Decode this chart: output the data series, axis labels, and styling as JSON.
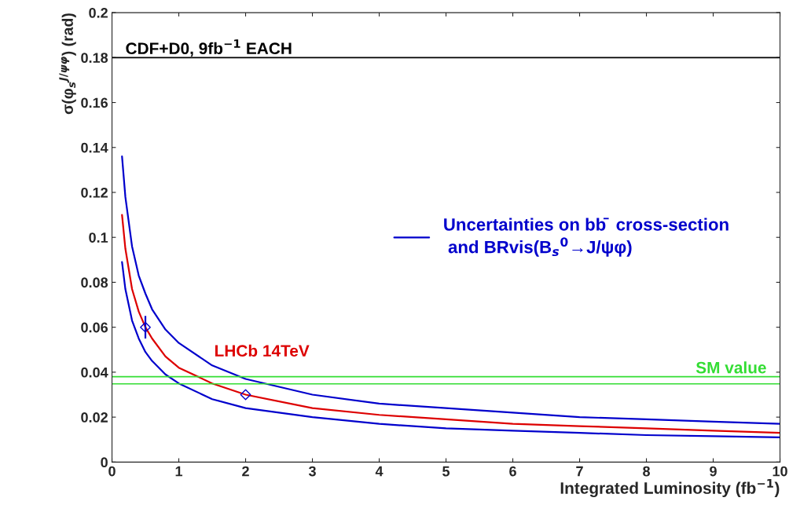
{
  "chart_data": {
    "type": "line",
    "xlabel": "Integrated Luminosity (fb$^{−1}$)",
    "ylabel": "σ(φ$_{s}$$^{J/ψφ}$) (rad)",
    "xlim": [
      0,
      10
    ],
    "ylim": [
      0,
      0.2
    ],
    "xticks": [
      0,
      1,
      2,
      3,
      4,
      5,
      6,
      7,
      8,
      9,
      10
    ],
    "yticks": [
      0,
      0.02,
      0.04,
      0.06,
      0.08,
      0.1,
      0.12,
      0.14,
      0.16,
      0.18,
      0.2
    ],
    "grid": false,
    "legend": "center right",
    "line_style": "solid",
    "marker": "none",
    "series": [
      {
        "name": "Uncertainties on bb̄  cross-section\n and BRvis(B$_{s}$$^{0}$→J/ψφ)",
        "color": "#0000cc",
        "x": [
          0.15,
          0.2,
          0.3,
          0.4,
          0.5,
          0.6,
          0.8,
          1,
          1.5,
          2,
          3,
          4,
          5,
          6,
          7,
          8,
          9,
          10
        ],
        "values": [
          0.136,
          0.118,
          0.096,
          0.083,
          0.075,
          0.068,
          0.059,
          0.053,
          0.043,
          0.037,
          0.03,
          0.026,
          0.024,
          0.022,
          0.02,
          0.019,
          0.018,
          0.017
        ]
      },
      {
        "name": "LHCb 14TeV",
        "color": "#dd0000",
        "x": [
          0.15,
          0.2,
          0.3,
          0.4,
          0.5,
          0.6,
          0.8,
          1,
          1.5,
          2,
          3,
          4,
          5,
          6,
          7,
          8,
          9,
          10
        ],
        "values": [
          0.11,
          0.095,
          0.077,
          0.067,
          0.06,
          0.055,
          0.047,
          0.042,
          0.035,
          0.03,
          0.024,
          0.021,
          0.019,
          0.017,
          0.016,
          0.015,
          0.014,
          0.013
        ]
      },
      {
        "color": "#0000cc",
        "x": [
          0.15,
          0.2,
          0.3,
          0.4,
          0.5,
          0.6,
          0.8,
          1,
          1.5,
          2,
          3,
          4,
          5,
          6,
          7,
          8,
          9,
          10
        ],
        "values": [
          0.089,
          0.077,
          0.063,
          0.055,
          0.049,
          0.045,
          0.039,
          0.035,
          0.028,
          0.024,
          0.02,
          0.017,
          0.015,
          0.014,
          0.013,
          0.012,
          0.0115,
          0.011
        ]
      },
      {
        "type": "scatter",
        "marker": "diamond",
        "color": "#0000cc",
        "x": [
          0.5,
          2
        ],
        "values": [
          0.06,
          0.03
        ],
        "errors": [
          0.005,
          null
        ]
      }
    ],
    "ref_lines": [
      {
        "axis": "y",
        "value": 0.18,
        "label": "CDF+D0, 9fb$^{−1}$ EACH",
        "color": "#000000"
      },
      {
        "axis": "y",
        "value": 0.038,
        "label": "SM value",
        "color": "#33dd33"
      },
      {
        "axis": "y",
        "value": 0.0348,
        "color": "#33dd33"
      }
    ]
  }
}
